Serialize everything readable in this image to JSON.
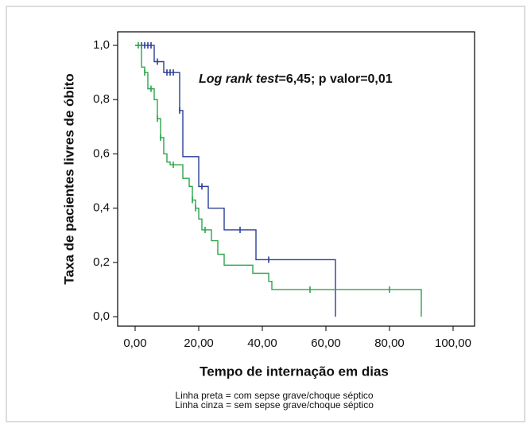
{
  "chart_data": {
    "type": "kaplan-meier",
    "annotation": [
      "Log rank test",
      "=6,45; p valor=0,01"
    ],
    "xlabel": "Tempo de internação em dias",
    "ylabel": "Taxa de pacientes livres de óbito",
    "footnotes": [
      "Linha preta = com sepse grave/choque séptico",
      "Linha cinza = sem sepse grave/choque séptico"
    ],
    "xlim": [
      -5.5,
      106.75
    ],
    "ylim": [
      -0.035,
      1.05
    ],
    "xticks": [
      {
        "value": 0,
        "label": "0,00"
      },
      {
        "value": 20,
        "label": "20,00"
      },
      {
        "value": 40,
        "label": "40,00"
      },
      {
        "value": 60,
        "label": "60,00"
      },
      {
        "value": 80,
        "label": "80,00"
      },
      {
        "value": 100,
        "label": "100,00"
      }
    ],
    "yticks": [
      {
        "value": 0,
        "label": "0,0"
      },
      {
        "value": 0.2,
        "label": "0,2"
      },
      {
        "value": 0.4,
        "label": "0,4"
      },
      {
        "value": 0.6,
        "label": "0,6"
      },
      {
        "value": 0.8,
        "label": "0,8"
      },
      {
        "value": 1,
        "label": "1,0"
      }
    ],
    "series": [
      {
        "color": "#2b3f97",
        "x": [
          0,
          6,
          9,
          14,
          15,
          20,
          23,
          28,
          38,
          63
        ],
        "values": [
          1.0,
          0.94,
          0.9,
          0.76,
          0.59,
          0.48,
          0.4,
          0.32,
          0.21,
          0.0
        ],
        "censored": {
          "x": [
            2,
            3,
            4,
            5,
            7,
            10,
            11,
            12,
            14,
            21,
            33,
            42
          ],
          "values": [
            1.0,
            1.0,
            1.0,
            1.0,
            0.94,
            0.9,
            0.9,
            0.9,
            0.76,
            0.48,
            0.32,
            0.21
          ]
        }
      },
      {
        "color": "#2ba54a",
        "x": [
          0,
          2,
          3,
          4,
          6,
          7,
          8,
          9,
          10,
          11,
          15,
          17,
          18,
          19,
          20,
          21,
          24,
          26,
          28,
          37,
          42,
          43,
          90
        ],
        "values": [
          1.0,
          0.92,
          0.9,
          0.84,
          0.8,
          0.73,
          0.66,
          0.6,
          0.57,
          0.56,
          0.51,
          0.48,
          0.43,
          0.4,
          0.36,
          0.32,
          0.28,
          0.23,
          0.19,
          0.16,
          0.13,
          0.1,
          0.0
        ],
        "censored": {
          "x": [
            1,
            3,
            5,
            7,
            8,
            12,
            18,
            19,
            22,
            55,
            80
          ],
          "values": [
            1.0,
            0.9,
            0.84,
            0.73,
            0.66,
            0.56,
            0.43,
            0.4,
            0.32,
            0.1,
            0.1
          ]
        }
      }
    ]
  }
}
